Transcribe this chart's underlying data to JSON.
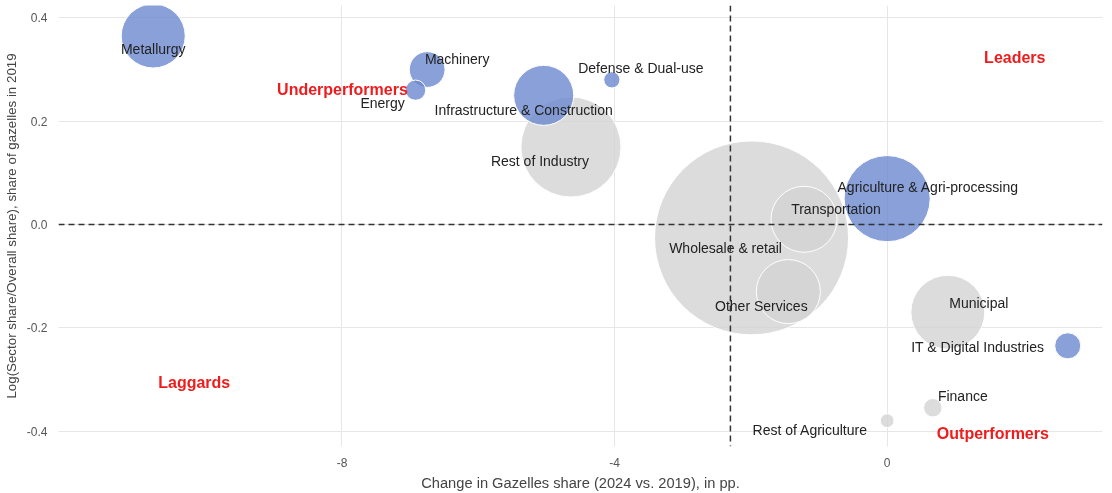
{
  "chart_data": {
    "type": "bubble",
    "xlabel": "Change in Gazelles share (2024 vs. 2019), in pp.",
    "ylabel": "Log(Sector share/Overall share), share of gazelles in 2019",
    "x": [
      -10.77,
      -6.75,
      -6.92,
      -4.04,
      -5.04,
      -4.64,
      -1.99,
      -1.22,
      0,
      -1.45,
      0.89,
      2.65,
      0.67,
      0
    ],
    "values": [
      0.365,
      0.3,
      0.26,
      0.28,
      0.25,
      0.15,
      -0.026,
      0.01,
      0.05,
      -0.13,
      -0.17,
      -0.235,
      -0.355,
      -0.38
    ],
    "sizes": [
      0.109,
      0.034,
      0.011,
      0.007,
      0.096,
      0.266,
      1,
      0.116,
      0.197,
      0.109,
      0.145,
      0.018,
      0.009,
      0.005
    ],
    "colors": [
      "#6b88cf",
      "#6b88cf",
      "#6b88cf",
      "#6b88cf",
      "#6b88cf",
      "#d3d3d3",
      "#d3d3d3",
      "#d3d3d3",
      "#6b88cf",
      "#d3d3d3",
      "#d3d3d3",
      "#6b88cf",
      "#d3d3d3",
      "#d3d3d3"
    ],
    "xlim": [
      -12.16,
      3.16
    ],
    "ylim": [
      -0.43,
      0.424
    ],
    "xticks": [
      {
        "value": -8,
        "label": "-8"
      },
      {
        "value": -4,
        "label": "-4"
      },
      0
    ],
    "yticks": [
      -0.4,
      -0.2,
      {
        "value": 0,
        "label": "0.0"
      },
      0.2,
      0.4
    ],
    "grid": true,
    "ref_lines": [
      {
        "axis": "x",
        "value": -2.3,
        "line_style": "dashed",
        "color": "#333333"
      },
      {
        "axis": "y",
        "value": 0,
        "line_style": "dashed",
        "color": "#333333"
      }
    ],
    "annotations": [
      "Underperformers",
      "Leaders",
      "Laggards",
      "Outperformers",
      {
        "text": "Metallurgy",
        "x": -10.77,
        "y": 0.365
      },
      {
        "text": "Machinery",
        "x": -6.75,
        "y": 0.3
      },
      {
        "text": "Energy",
        "x": -6.92,
        "y": 0.26
      },
      {
        "text": "Defense & Dual-use",
        "x": -4.04,
        "y": 0.28
      },
      {
        "text": "Infrastructure & Construction",
        "x": -5.04,
        "y": 0.25
      },
      {
        "text": "Rest of Industry",
        "x": -4.64,
        "y": 0.15
      },
      {
        "text": "Wholesale & retail",
        "x": -1.99,
        "y": -0.026
      },
      {
        "text": "Transportation",
        "x": -1.22,
        "y": 0.01
      },
      {
        "text": "Agriculture & Agri-processing",
        "x": 0,
        "y": 0.05
      },
      {
        "text": "Other Services",
        "x": -1.45,
        "y": -0.13
      },
      {
        "text": "Municipal",
        "x": 0.89,
        "y": -0.17
      },
      {
        "text": "IT & Digital Industries",
        "x": 2.65,
        "y": -0.235
      },
      {
        "text": "Finance",
        "x": 0.67,
        "y": -0.355
      },
      {
        "text": "Rest of Agriculture",
        "x": 0,
        "y": -0.38
      }
    ]
  }
}
